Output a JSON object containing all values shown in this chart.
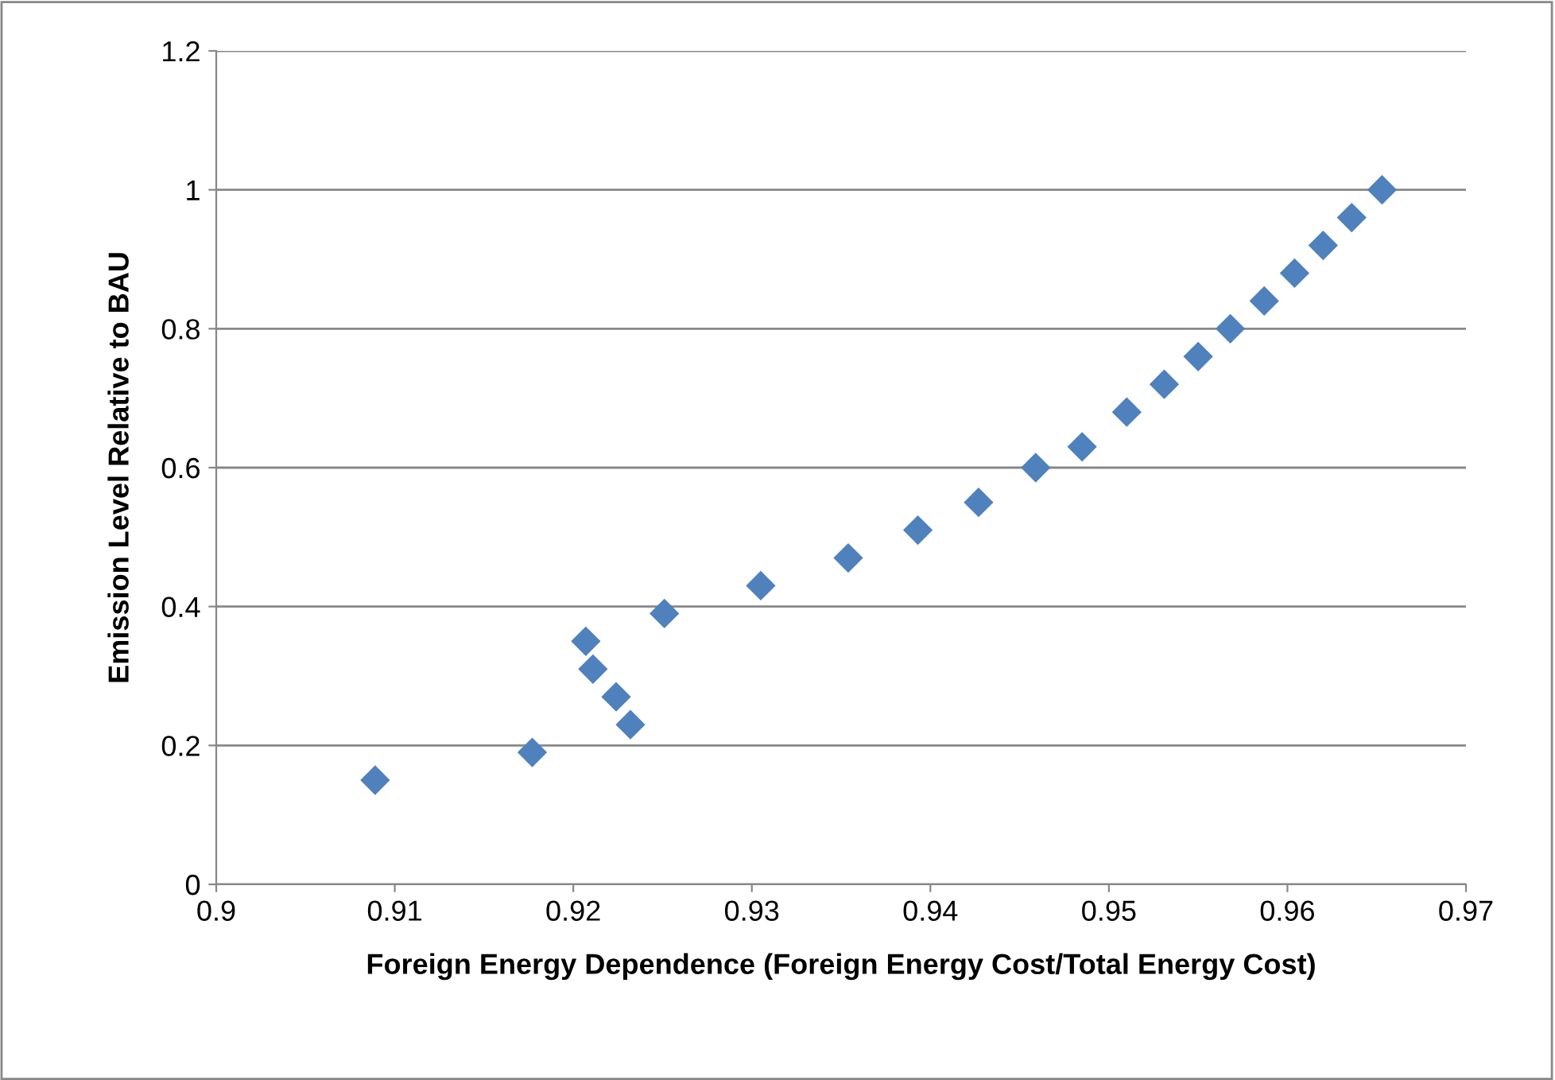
{
  "chart_data": {
    "type": "scatter",
    "xlabel": "Foreign Energy Dependence (Foreign Energy Cost/Total Energy Cost)",
    "ylabel": "Emission Level Relative to BAU",
    "x": [
      0.9089,
      0.9177,
      0.9207,
      0.9211,
      0.9224,
      0.9232,
      0.9251,
      0.9305,
      0.9354,
      0.9393,
      0.9427,
      0.9459,
      0.9485,
      0.951,
      0.9531,
      0.955,
      0.9568,
      0.9587,
      0.9604,
      0.962,
      0.9636,
      0.9653
    ],
    "values": [
      0.15,
      0.19,
      0.35,
      0.31,
      0.27,
      0.23,
      0.39,
      0.43,
      0.47,
      0.51,
      0.55,
      0.6,
      0.63,
      0.68,
      0.72,
      0.76,
      0.8,
      0.84,
      0.88,
      0.92,
      0.96,
      1.0
    ],
    "color": "#4f81bd",
    "marker": "diamond",
    "grid": "y",
    "legend": false,
    "xlim": [
      0.9,
      0.97
    ],
    "xticks": [
      0.9,
      0.91,
      0.92,
      0.93,
      0.94,
      0.95,
      0.96,
      0.97
    ],
    "ylim": [
      0,
      1.2
    ],
    "yticks": [
      0,
      0.2,
      0.4,
      0.6,
      0.8,
      1,
      1.2
    ]
  }
}
